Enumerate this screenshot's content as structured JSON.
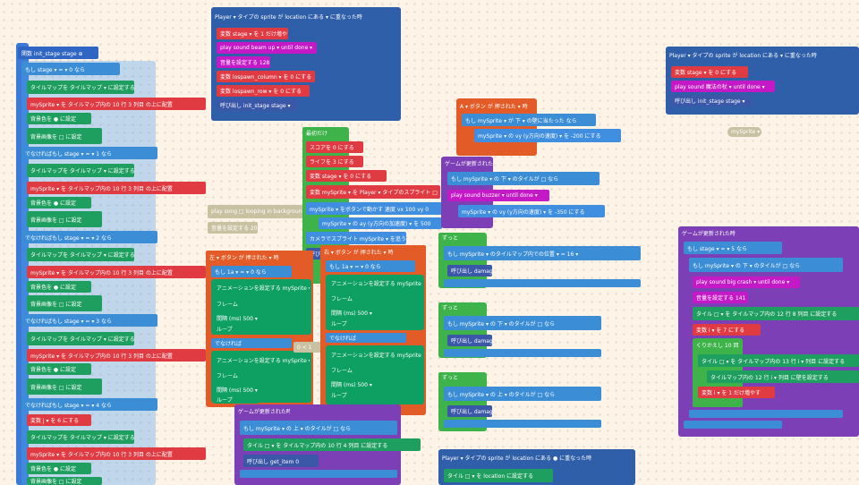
{
  "top_event": {
    "title": "Player ▾ タイプの sprite が location にある ▾ に重なった時",
    "lines": [
      "変数 stage ▾ を 1 だけ増やす",
      "play sound beam up ▾ until done ▾",
      "音量を設定する 128",
      "変数 lospawn_column ▾ を 0 にする",
      "変数 lospawn_row ▾ を 0 にする",
      "呼び出し init_stage stage ▾"
    ]
  },
  "init_func": {
    "header": "関数 init_stage stage ⊕",
    "sections": [
      {
        "cond": "もし stage ▾ = ▾ 0 なら",
        "color": "#3b3b3b"
      },
      {
        "cond": "でなければもし stage ▾ = ▾ 1 なら",
        "color": "#8a4a2b"
      },
      {
        "cond": "でなければもし stage ▾ = ▾ 2 なら",
        "color": "#7a3a2a"
      },
      {
        "cond": "でなければもし stage ▾ = ▾ 3 なら",
        "color": "#c04a30"
      },
      {
        "cond": "でなければもし stage ▾ = ▾ 4 なら",
        "color": "#7a6a6a"
      }
    ],
    "tilemap_label": "タイルマップを タイルマップ ▾ に設定する",
    "place_label": "mySprite ▾ を タイルマップ内の 10 行 3 列目 の上に配置",
    "bgcolor_label": "背景色を ● に設定",
    "bgimage_label": "背景画像を □ に設定",
    "var_j": "変数 j ▾ を 6 にする"
  },
  "start_block": {
    "header": "最初だけ",
    "lines": [
      "スコアを 0 にする",
      "ライフを 3 にする",
      "変数 stage ▾ を 0 にする",
      "変数 mySprite ▾ を Player ▾ タイプのスプライト □",
      "mySprite ▾ をボタンで動かす 速度 vx 100 vy 0",
      "mySprite ▾ の ay (y方向の加速度) ▾ を 500",
      "カメラでスプライト mySprite ▾ を追う",
      "呼び出し init_stage 0"
    ]
  },
  "music_block": {
    "play": "play song □ looping in background ▾",
    "volume": "音量を設定する 20"
  },
  "left_button": {
    "title": "左 ▾ ボタン が 押された ▾ 時",
    "cond": "もし 1a ▾ = ▾ 0 なら",
    "anim_label": "アニメーションを設定する mySprite ▾",
    "frame": "フレーム",
    "interval": "間隔 (ms) 500 ▾",
    "loop": "ループ",
    "else": "でなければ"
  },
  "right_button": {
    "title": "右 ▾ ボタン が 押された ▾ 時",
    "cond": "もし 1a ▾ = ▾ 0 なら"
  },
  "a_button": {
    "title": "A ▾ ボタン が 押された ▾ 時",
    "cond": "もし mySprite ▾ が 下 ▾ の壁に当たった なら",
    "action": "mySprite ▾ の vy (y方向の速度) ▾ を -200 にする"
  },
  "game_update_1": {
    "title": "ゲームが更新された時",
    "cond": "もし mySprite ▾ の 下 ▾ のタイルが □ なら",
    "play": "play sound buzzer ▾ until done ▾",
    "action": "mySprite ▾ の vy (y方向の速度) ▾ を -350 にする"
  },
  "forever_blocks": [
    {
      "label": "ずっと",
      "cond": "もし mySprite ▾ のタイルマップ内での位置 ▾ = 16 ▾",
      "call": "呼び出し damage"
    },
    {
      "label": "ずっと",
      "cond": "もし mySprite ▾ の 下 ▾ のタイルが □ なら",
      "call": "呼び出し damage"
    },
    {
      "label": "ずっと",
      "cond": "もし mySprite ▾ の 上 ▾ のタイルが □ なら",
      "call": "呼び出し damage"
    }
  ],
  "game_update_2": {
    "title": "ゲームが更新された時",
    "cond": "もし mySprite ▾ の 上 ▾ のタイルが □ なら",
    "tile": "タイル □ ▾ を タイルマップ内の 10 行 4 列目 に設定する",
    "call": "呼び出し get_item 0"
  },
  "bottom_event": {
    "title": "Player ▾ タイプの sprite が location にある ● に重なった時",
    "tile": "タイル □ ▾ を location に設定する"
  },
  "right_event": {
    "title": "Player ▾ タイプの sprite が location にある ▾ に重なった時",
    "lines": [
      "変数 stage ▾ を 0 にする",
      "play sound 魔法の杖 ▾ until done ▾",
      "呼び出し init_stage stage ▾"
    ]
  },
  "floating_pill": "mySprite ▾",
  "game_update_3": {
    "title": "ゲームが更新された時",
    "cond1": "もし stage ▾ = ▾ 5 なら",
    "cond2": "もし mySprite ▾ の 下 ▾ のタイルが □ なら",
    "play": "play sound big crash ▾ until done ▾",
    "volume": "音量を設定する 141",
    "tile": "タイル □ ▾ を タイルマップ内の 12 行 8 列目 に設定する",
    "var_i": "変数 i ▾ を 7 にする",
    "repeat": "くりかえし 10 回",
    "tile2": "タイル □ ▾ を タイルマップ内の 13 行 i ▾ 列目 に設定する",
    "wall": "タイルマップ内の 12 行 i ▾ 列目 に壁を設定する",
    "inc": "変数 i ▾ を 1 だけ増やす"
  },
  "small_op": "0 < 1"
}
